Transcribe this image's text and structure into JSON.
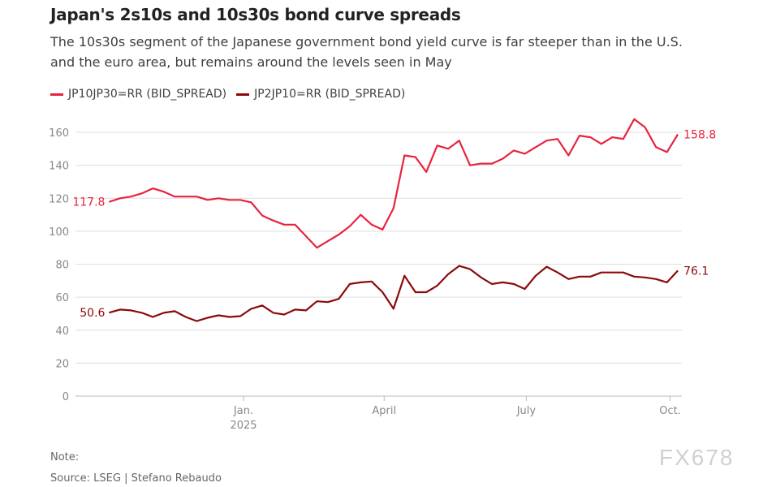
{
  "header": {
    "title": "Japan's 2s10s and 10s30s bond curve spreads",
    "subtitle": "The 10s30s segment of the Japanese government bond yield curve is far steeper than in the U.S. and the euro area, but remains around the levels seen in May"
  },
  "footer": {
    "note": "Note:",
    "source": "Source: LSEG | Stefano Rebaudo"
  },
  "watermark": "FX678",
  "chart_data": {
    "type": "line",
    "title": "Japan's 2s10s and 10s30s bond curve spreads",
    "xlabel": "",
    "ylabel": "",
    "ylim": [
      0,
      160
    ],
    "yticks": [
      "0",
      "20",
      "40",
      "60",
      "80",
      "100",
      "120",
      "140",
      "160"
    ],
    "xticks": [
      {
        "date": "2025-01-01",
        "label": "Jan.",
        "sublabel": "2025"
      },
      {
        "date": "2025-04-01",
        "label": "April"
      },
      {
        "date": "2025-07-01",
        "label": "July"
      },
      {
        "date": "2025-10-01",
        "label": "Oct."
      }
    ],
    "grid": true,
    "legend": "top-left",
    "x": [
      "2024-10-07",
      "2024-10-14",
      "2024-10-21",
      "2024-10-28",
      "2024-11-04",
      "2024-11-11",
      "2024-11-18",
      "2024-11-25",
      "2024-12-02",
      "2024-12-09",
      "2024-12-16",
      "2024-12-23",
      "2024-12-30",
      "2025-01-06",
      "2025-01-13",
      "2025-01-20",
      "2025-01-27",
      "2025-02-03",
      "2025-02-10",
      "2025-02-17",
      "2025-02-24",
      "2025-03-03",
      "2025-03-10",
      "2025-03-17",
      "2025-03-24",
      "2025-03-31",
      "2025-04-07",
      "2025-04-14",
      "2025-04-21",
      "2025-04-28",
      "2025-05-05",
      "2025-05-12",
      "2025-05-19",
      "2025-05-26",
      "2025-06-02",
      "2025-06-09",
      "2025-06-16",
      "2025-06-23",
      "2025-06-30",
      "2025-07-07",
      "2025-07-14",
      "2025-07-21",
      "2025-07-28",
      "2025-08-04",
      "2025-08-11",
      "2025-08-18",
      "2025-08-25",
      "2025-09-01",
      "2025-09-08",
      "2025-09-15",
      "2025-09-22",
      "2025-09-29",
      "2025-10-06"
    ],
    "series": [
      {
        "name": "JP10JP30=RR (BID_SPREAD)",
        "color": "#e8233f",
        "first_label": "117.8",
        "last_label": "158.8",
        "values": [
          117.8,
          120,
          121,
          123,
          126,
          124,
          121,
          121,
          121,
          119,
          120,
          119,
          119,
          117.5,
          109.5,
          106.5,
          104,
          104,
          97,
          90,
          94,
          98,
          103,
          110,
          104,
          101,
          114,
          146,
          145,
          136,
          152,
          150,
          155,
          140,
          141,
          141,
          144,
          149,
          147,
          151,
          155,
          156,
          146,
          158,
          157,
          153,
          157,
          156,
          168,
          163,
          151,
          148,
          158.8
        ]
      },
      {
        "name": "JP2JP10=RR (BID_SPREAD)",
        "color": "#8b0a0a",
        "first_label": "50.6",
        "last_label": "76.1",
        "values": [
          50.6,
          52.5,
          52,
          50.5,
          48,
          50.5,
          51.5,
          48,
          45.5,
          47.5,
          49,
          48,
          48.5,
          53,
          55,
          50.5,
          49.5,
          52.5,
          52,
          57.5,
          57,
          59,
          68,
          69,
          69.5,
          63,
          53,
          73,
          63,
          63,
          67,
          74,
          79,
          77,
          72,
          68,
          69,
          68,
          65,
          73,
          78.5,
          75,
          71,
          72.5,
          72.5,
          75,
          75,
          75,
          72.5,
          72,
          71,
          69,
          76.1
        ]
      }
    ]
  }
}
